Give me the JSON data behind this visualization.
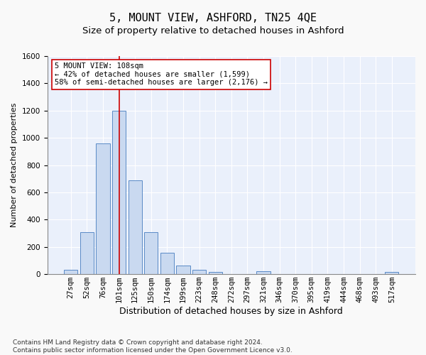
{
  "title": "5, MOUNT VIEW, ASHFORD, TN25 4QE",
  "subtitle": "Size of property relative to detached houses in Ashford",
  "xlabel": "Distribution of detached houses by size in Ashford",
  "ylabel": "Number of detached properties",
  "categories": [
    "27sqm",
    "52sqm",
    "76sqm",
    "101sqm",
    "125sqm",
    "150sqm",
    "174sqm",
    "199sqm",
    "223sqm",
    "248sqm",
    "272sqm",
    "297sqm",
    "321sqm",
    "346sqm",
    "370sqm",
    "395sqm",
    "419sqm",
    "444sqm",
    "468sqm",
    "493sqm",
    "517sqm"
  ],
  "values": [
    30,
    310,
    960,
    1200,
    690,
    310,
    155,
    65,
    30,
    15,
    0,
    0,
    20,
    0,
    0,
    0,
    0,
    0,
    0,
    0,
    15
  ],
  "bar_color": "#c9d9f0",
  "bar_edge_color": "#5a8ac6",
  "ref_line_color": "#cc0000",
  "annotation_text": "5 MOUNT VIEW: 108sqm\n← 42% of detached houses are smaller (1,599)\n58% of semi-detached houses are larger (2,176) →",
  "annotation_box_color": "#ffffff",
  "annotation_box_edge": "#cc0000",
  "ylim": [
    0,
    1600
  ],
  "yticks": [
    0,
    200,
    400,
    600,
    800,
    1000,
    1200,
    1400,
    1600
  ],
  "background_color": "#eaf0fb",
  "grid_color": "#ffffff",
  "fig_background": "#f9f9f9",
  "footer": "Contains HM Land Registry data © Crown copyright and database right 2024.\nContains public sector information licensed under the Open Government Licence v3.0.",
  "title_fontsize": 11,
  "subtitle_fontsize": 9.5,
  "xlabel_fontsize": 9,
  "ylabel_fontsize": 8,
  "tick_fontsize": 7.5,
  "footer_fontsize": 6.5
}
